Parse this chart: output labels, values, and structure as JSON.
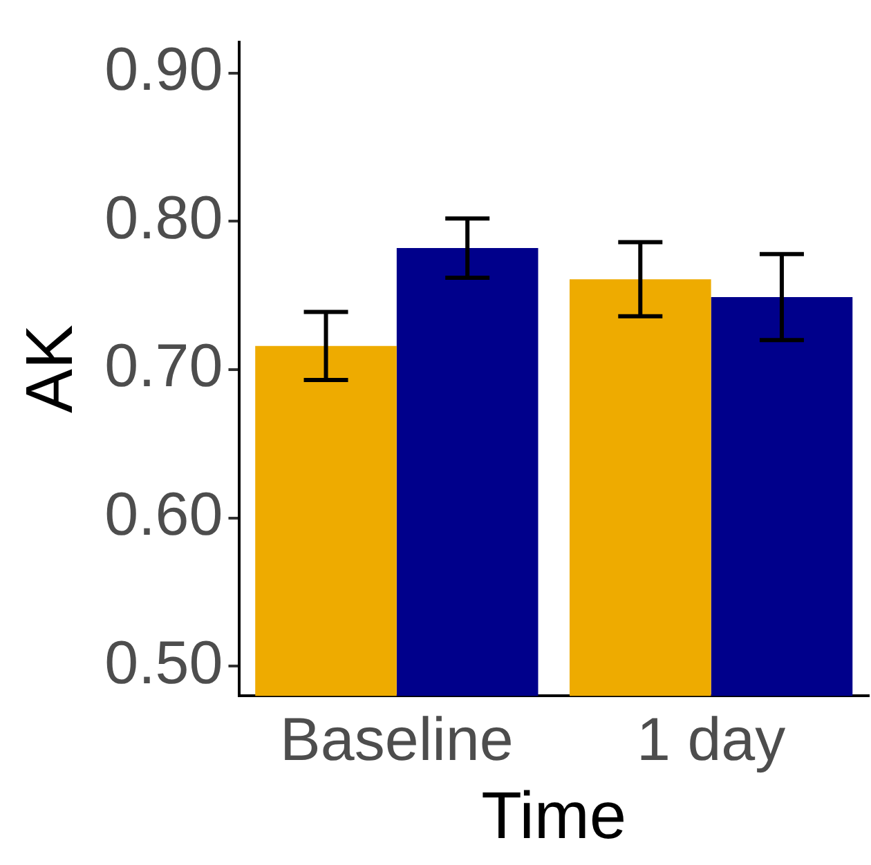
{
  "chart_data": {
    "type": "bar",
    "xlabel": "Time",
    "ylabel": "AK",
    "categories": [
      "Baseline",
      "1 day"
    ],
    "series": [
      {
        "color": "#eeab00",
        "values": [
          0.716,
          0.761
        ],
        "errors": [
          [
            0.693,
            0.739
          ],
          [
            0.736,
            0.786
          ]
        ]
      },
      {
        "color": "#00008b",
        "values": [
          0.782,
          0.749
        ],
        "errors": [
          [
            0.762,
            0.802
          ],
          [
            0.72,
            0.778
          ]
        ]
      }
    ],
    "ylim": [
      0.48,
      0.921
    ],
    "yticks": [
      {
        "value": 0.5,
        "label": "0.50"
      },
      {
        "value": 0.6,
        "label": "0.60"
      },
      {
        "value": 0.7,
        "label": "0.70"
      },
      {
        "value": 0.8,
        "label": "0.80"
      },
      {
        "value": 0.9,
        "label": "0.90"
      }
    ],
    "grid": false,
    "legend": false
  }
}
